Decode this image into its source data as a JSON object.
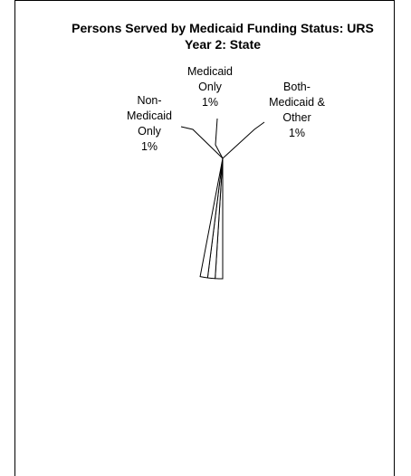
{
  "chart_data": {
    "type": "pie",
    "title": "Persons Served by Medicaid Funding Status: URS Year 2: State",
    "categories": [
      "Non-Medicaid Only",
      "Medicaid Only",
      "Both-Medicaid & Other"
    ],
    "values": [
      1,
      1,
      1
    ],
    "value_labels": [
      "1%",
      "1%",
      "1%"
    ]
  }
}
